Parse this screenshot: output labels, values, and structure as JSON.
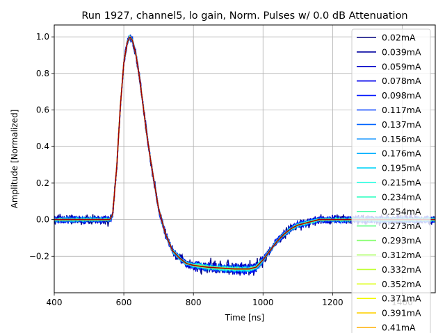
{
  "chart_data": {
    "type": "line",
    "title": "Run 1927, channel5, lo gain, Norm. Pulses w/ 0.0 dB Attenuation",
    "xlabel": "Time [ns]",
    "ylabel": "Amplitude [Normalized]",
    "xlim": [
      400,
      1495
    ],
    "ylim": [
      -0.4,
      1.065
    ],
    "x_ticks": [
      400,
      600,
      800,
      1000,
      1200,
      1400
    ],
    "x_tick_labels": [
      "400",
      "600",
      "800",
      "1000",
      "1200",
      "1400"
    ],
    "y_ticks": [
      -0.2,
      0.0,
      0.2,
      0.4,
      0.6,
      0.8,
      1.0
    ],
    "y_tick_labels": [
      "−0.2",
      "0.0",
      "0.2",
      "0.4",
      "0.6",
      "0.8",
      "1.0"
    ],
    "grid": true,
    "legend_position": "upper-right",
    "pulse_shape": {
      "time_ns": [
        400,
        560,
        568,
        580,
        590,
        600,
        610,
        617,
        625,
        635,
        645,
        655,
        665,
        675,
        685,
        700,
        720,
        740,
        760,
        780,
        800,
        840,
        880,
        920,
        960,
        980,
        1000,
        1020,
        1040,
        1060,
        1080,
        1100,
        1120,
        1140,
        1160,
        1180,
        1200,
        1250,
        1300,
        1400,
        1495
      ],
      "amplitude": [
        0.0,
        0.0,
        0.03,
        0.3,
        0.62,
        0.86,
        0.97,
        1.0,
        0.98,
        0.9,
        0.78,
        0.63,
        0.48,
        0.35,
        0.23,
        0.06,
        -0.08,
        -0.17,
        -0.21,
        -0.24,
        -0.25,
        -0.26,
        -0.265,
        -0.27,
        -0.27,
        -0.26,
        -0.22,
        -0.17,
        -0.12,
        -0.08,
        -0.05,
        -0.03,
        -0.02,
        -0.01,
        0.0,
        0.0,
        0.0,
        0.0,
        0.0,
        0.0,
        0.0
      ]
    },
    "series": [
      {
        "name": "0.02mA",
        "color": "#00007f"
      },
      {
        "name": "0.039mA",
        "color": "#00009f"
      },
      {
        "name": "0.059mA",
        "color": "#0000c8"
      },
      {
        "name": "0.078mA",
        "color": "#0000ec"
      },
      {
        "name": "0.098mA",
        "color": "#0014ff"
      },
      {
        "name": "0.117mA",
        "color": "#003cff"
      },
      {
        "name": "0.137mA",
        "color": "#0064ff"
      },
      {
        "name": "0.156mA",
        "color": "#008cff"
      },
      {
        "name": "0.176mA",
        "color": "#00b0ff"
      },
      {
        "name": "0.195mA",
        "color": "#00d4f8"
      },
      {
        "name": "0.215mA",
        "color": "#16ffe1"
      },
      {
        "name": "0.234mA",
        "color": "#35ffc2"
      },
      {
        "name": "0.254mA",
        "color": "#4dffaa"
      },
      {
        "name": "0.273mA",
        "color": "#6aff8d"
      },
      {
        "name": "0.293mA",
        "color": "#87ff70"
      },
      {
        "name": "0.312mA",
        "color": "#a4ff53"
      },
      {
        "name": "0.332mA",
        "color": "#c1ff36"
      },
      {
        "name": "0.352mA",
        "color": "#deff1a"
      },
      {
        "name": "0.371mA",
        "color": "#f1f800"
      },
      {
        "name": "0.391mA",
        "color": "#ffd000"
      },
      {
        "name": "0.41mA",
        "color": "#ffae00"
      }
    ]
  }
}
